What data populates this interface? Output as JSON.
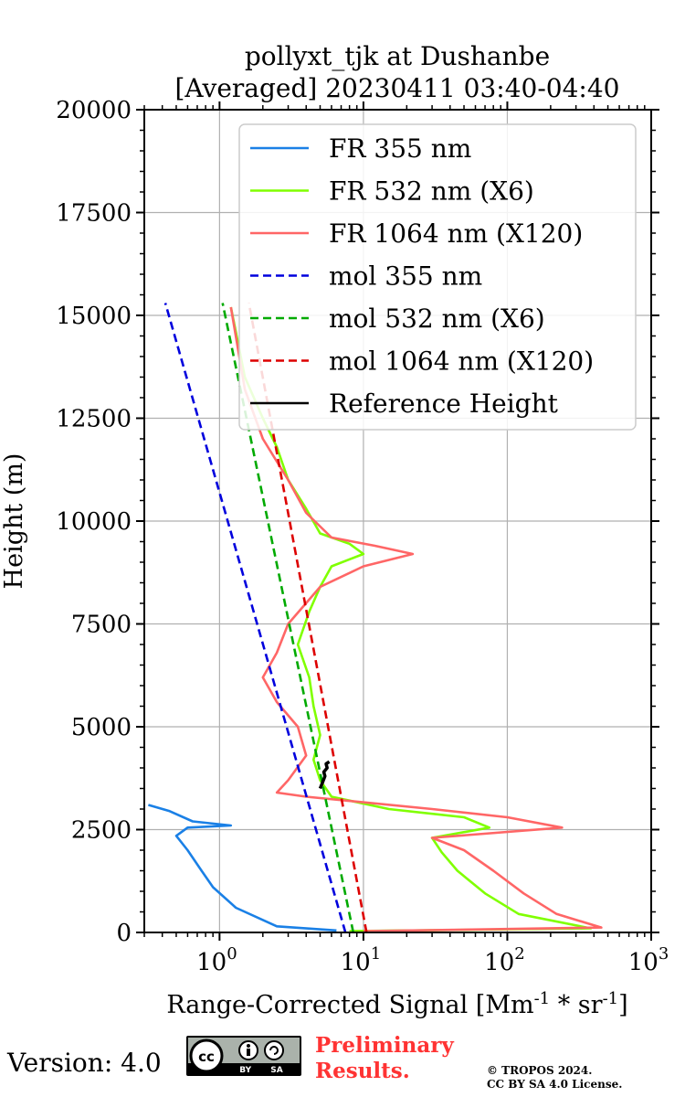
{
  "title_line1": "pollyxt_tjk at Dushanbe",
  "title_line2": "[Averaged] 20230411 03:40-04:40",
  "footer": {
    "version": "Version: 4.0",
    "cc_text": "BY SA",
    "preliminary_line1": "Preliminary",
    "preliminary_line2": "Results.",
    "copyright_line1": "© TROPOS 2024.",
    "copyright_line2": "CC BY SA 4.0 License."
  },
  "chart_data": {
    "type": "line",
    "title": "pollyxt_tjk at Dushanbe\n[Averaged] 20230411 03:40-04:40",
    "xlabel": "Range-Corrected Signal [Mm⁻¹ * sr⁻¹]",
    "ylabel": "Height (m)",
    "xscale": "log",
    "xlim": [
      0.3,
      1000
    ],
    "ylim": [
      0,
      20000
    ],
    "x_ticks": [
      1,
      10,
      100,
      1000
    ],
    "x_tick_labels": [
      {
        "base": "10",
        "exp": "0"
      },
      {
        "base": "10",
        "exp": "1"
      },
      {
        "base": "10",
        "exp": "2"
      },
      {
        "base": "10",
        "exp": "3"
      }
    ],
    "y_ticks": [
      0,
      2500,
      5000,
      7500,
      10000,
      12500,
      15000,
      17500,
      20000
    ],
    "y_tick_labels": [
      "0",
      "2500",
      "5000",
      "7500",
      "10000",
      "12500",
      "15000",
      "17500",
      "20000"
    ],
    "grid": true,
    "legend_position": "upper-right",
    "series": [
      {
        "name": "FR 355 nm",
        "color": "#1a80e6",
        "style": "solid",
        "points": [
          [
            6.5,
            50
          ],
          [
            2.5,
            150
          ],
          [
            1.3,
            600
          ],
          [
            0.9,
            1100
          ],
          [
            0.75,
            1500
          ],
          [
            0.6,
            2000
          ],
          [
            0.5,
            2350
          ],
          [
            0.6,
            2550
          ],
          [
            1.2,
            2600
          ],
          [
            0.65,
            2700
          ],
          [
            0.45,
            2950
          ],
          [
            0.32,
            3100
          ]
        ]
      },
      {
        "name": "FR 532 nm (X6)",
        "color": "#80ff00",
        "style": "solid",
        "points": [
          [
            8,
            30
          ],
          [
            380,
            100
          ],
          [
            120,
            450
          ],
          [
            70,
            950
          ],
          [
            45,
            1500
          ],
          [
            35,
            1950
          ],
          [
            30,
            2300
          ],
          [
            75,
            2550
          ],
          [
            50,
            2800
          ],
          [
            15,
            3000
          ],
          [
            6,
            3300
          ],
          [
            5,
            3700
          ],
          [
            4.5,
            4200
          ],
          [
            5,
            4800
          ],
          [
            4.5,
            5500
          ],
          [
            4.2,
            6200
          ],
          [
            3.5,
            7000
          ],
          [
            4.2,
            7800
          ],
          [
            5,
            8400
          ],
          [
            6,
            8900
          ],
          [
            10,
            9200
          ],
          [
            8,
            9450
          ],
          [
            5,
            9700
          ],
          [
            4,
            10300
          ],
          [
            3,
            11000
          ],
          [
            2.5,
            11800
          ],
          [
            2,
            12500
          ],
          [
            1.5,
            13500
          ],
          [
            1.2,
            15200
          ]
        ]
      },
      {
        "name": "FR 1064 nm (X120)",
        "color": "#ff6666",
        "style": "solid",
        "points": [
          [
            10,
            30
          ],
          [
            450,
            120
          ],
          [
            220,
            450
          ],
          [
            130,
            950
          ],
          [
            80,
            1500
          ],
          [
            50,
            2000
          ],
          [
            30,
            2300
          ],
          [
            240,
            2550
          ],
          [
            100,
            2800
          ],
          [
            30,
            3000
          ],
          [
            4,
            3300
          ],
          [
            2.5,
            3400
          ],
          [
            3,
            3700
          ],
          [
            4,
            4300
          ],
          [
            3.5,
            5000
          ],
          [
            2.5,
            5600
          ],
          [
            2,
            6200
          ],
          [
            2.5,
            6800
          ],
          [
            3,
            7500
          ],
          [
            5,
            8400
          ],
          [
            10,
            8900
          ],
          [
            22,
            9200
          ],
          [
            12,
            9400
          ],
          [
            6,
            9600
          ],
          [
            4,
            10200
          ],
          [
            3,
            11000
          ],
          [
            2,
            12000
          ],
          [
            1.5,
            13200
          ],
          [
            1.2,
            15200
          ]
        ]
      },
      {
        "name": "mol 355 nm",
        "color": "#0000dd",
        "style": "dashed",
        "points": [
          [
            7.5,
            0
          ],
          [
            0.42,
            15300
          ]
        ]
      },
      {
        "name": "mol 532 nm (X6)",
        "color": "#00aa00",
        "style": "dashed",
        "points": [
          [
            8.5,
            0
          ],
          [
            1.05,
            15300
          ]
        ]
      },
      {
        "name": "mol 1064 nm (X120)",
        "color": "#dd0000",
        "style": "dashed",
        "points": [
          [
            10.5,
            0
          ],
          [
            1.6,
            15300
          ]
        ]
      },
      {
        "name": "Reference Height",
        "color": "#000000",
        "style": "solid",
        "points": [
          [
            5.0,
            3500
          ],
          [
            5.2,
            3650
          ],
          [
            5.4,
            3800
          ],
          [
            5.3,
            3900
          ],
          [
            5.6,
            4000
          ],
          [
            5.5,
            4100
          ],
          [
            5.8,
            4150
          ]
        ]
      }
    ]
  }
}
